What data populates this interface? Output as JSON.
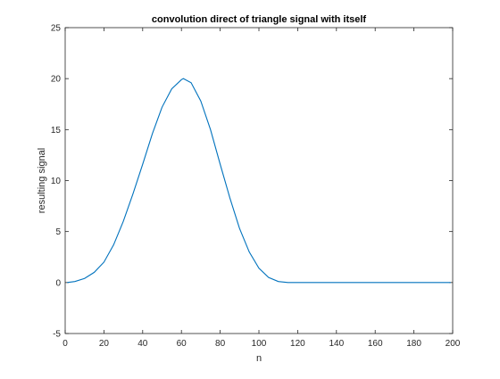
{
  "chart_data": {
    "type": "line",
    "title": "convolution direct of triangle signal with itself",
    "xlabel": "n",
    "ylabel": "resulting signal",
    "xlim": [
      0,
      200
    ],
    "ylim": [
      -5,
      25
    ],
    "xticks": [
      0,
      20,
      40,
      60,
      80,
      100,
      120,
      140,
      160,
      180,
      200
    ],
    "yticks": [
      -5,
      0,
      5,
      10,
      15,
      20,
      25
    ],
    "xtick_labels": [
      "0",
      "20",
      "40",
      "60",
      "80",
      "100",
      "120",
      "140",
      "160",
      "180",
      "200"
    ],
    "ytick_labels": [
      "-5",
      "0",
      "5",
      "10",
      "15",
      "20",
      "25"
    ],
    "grid": false,
    "line_color": "#0072BD",
    "series": [
      {
        "x": [
          1,
          5,
          10,
          15,
          20,
          25,
          30,
          35,
          40,
          45,
          50,
          55,
          60,
          61,
          65,
          70,
          75,
          80,
          85,
          90,
          95,
          100,
          105,
          110,
          115,
          120,
          140,
          160,
          180,
          199
        ],
        "y": [
          0,
          0.1,
          0.4,
          1.0,
          2.0,
          3.7,
          6.0,
          8.7,
          11.6,
          14.6,
          17.2,
          19.0,
          19.9,
          20.0,
          19.6,
          17.8,
          15.0,
          11.6,
          8.3,
          5.3,
          3.0,
          1.4,
          0.5,
          0.1,
          0,
          0,
          0,
          0,
          0,
          0
        ]
      }
    ]
  }
}
